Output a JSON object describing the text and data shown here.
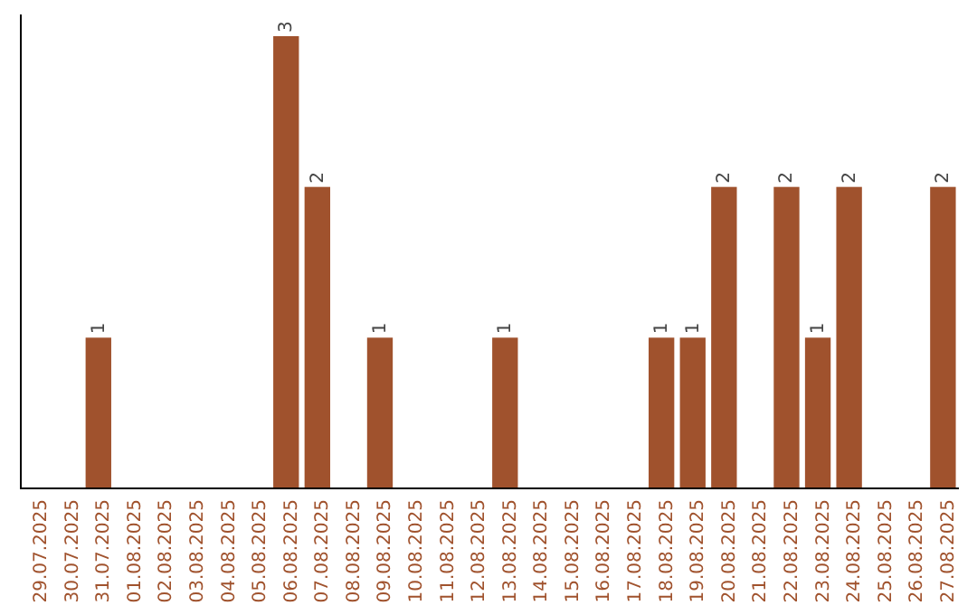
{
  "chart_data": {
    "type": "bar",
    "categories": [
      "29.07.2025",
      "30.07.2025",
      "31.07.2025",
      "01.08.2025",
      "02.08.2025",
      "03.08.2025",
      "04.08.2025",
      "05.08.2025",
      "06.08.2025",
      "07.08.2025",
      "08.08.2025",
      "09.08.2025",
      "10.08.2025",
      "11.08.2025",
      "12.08.2025",
      "13.08.2025",
      "14.08.2025",
      "15.08.2025",
      "16.08.2025",
      "17.08.2025",
      "18.08.2025",
      "19.08.2025",
      "20.08.2025",
      "21.08.2025",
      "22.08.2025",
      "23.08.2025",
      "24.08.2025",
      "25.08.2025",
      "26.08.2025",
      "27.08.2025"
    ],
    "values": [
      0,
      0,
      1,
      0,
      0,
      0,
      0,
      0,
      3,
      2,
      0,
      1,
      0,
      0,
      0,
      1,
      0,
      0,
      0,
      0,
      1,
      1,
      2,
      0,
      2,
      1,
      2,
      0,
      0,
      2
    ],
    "value_labels": [
      null,
      null,
      "1",
      null,
      null,
      null,
      null,
      null,
      "3",
      "2",
      null,
      "1",
      null,
      null,
      null,
      "1",
      null,
      null,
      null,
      null,
      "1",
      "1",
      "2",
      null,
      "2",
      "1",
      "2",
      null,
      null,
      "2"
    ],
    "color": "#a0522d"
  }
}
